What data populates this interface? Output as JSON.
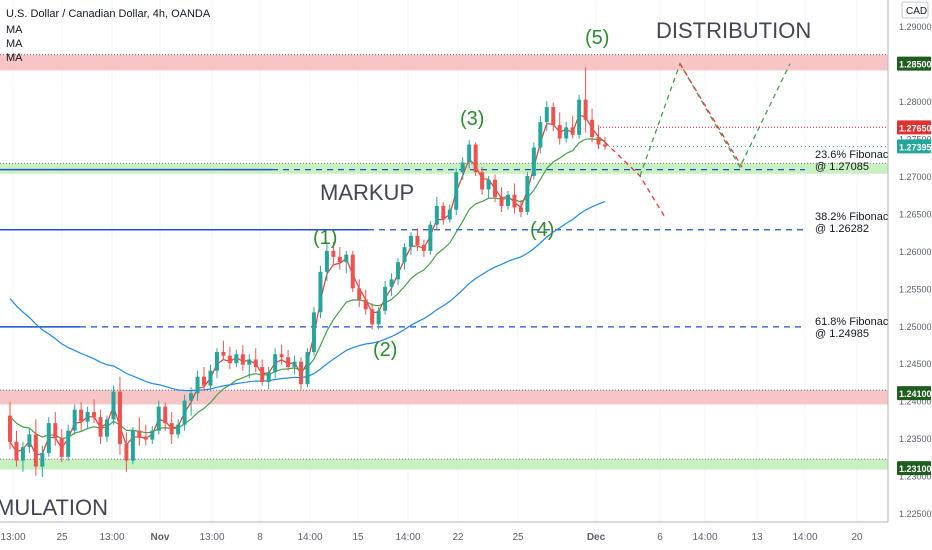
{
  "header": {
    "symbol_line": "U.S. Dollar / Canadian Dollar, 4h, OANDA",
    "ma_labels": [
      "MA",
      "MA",
      "MA"
    ]
  },
  "chart_data": {
    "type": "candlestick",
    "title": "U.S. Dollar / Canadian Dollar, 4h, OANDA",
    "currency": "CAD",
    "ylim": [
      1.2225,
      1.3
    ],
    "y_ticks": [
      "1.29000",
      "1.28000",
      "1.27500",
      "1.27000",
      "1.26500",
      "1.26000",
      "1.25500",
      "1.25000",
      "1.24500",
      "1.24000",
      "1.23500",
      "1.23000",
      "1.22500"
    ],
    "x_ticks": [
      "13:00",
      "25",
      "13:00",
      "Nov",
      "13:00",
      "8",
      "14:00",
      "15",
      "14:00",
      "22",
      "25",
      "Dec",
      "6",
      "14:00",
      "13",
      "14:00",
      "20"
    ],
    "price_labels": [
      {
        "text": "1.28500",
        "value": 1.285,
        "color": "#1e5e1e"
      },
      {
        "text": "1.27650",
        "value": 1.2765,
        "color": "#e03030"
      },
      {
        "text": "1.27395",
        "value": 1.27395,
        "color": "#26a69a"
      },
      {
        "text": "1.24100",
        "value": 1.241,
        "color": "#1e5e1e"
      },
      {
        "text": "1.23100",
        "value": 1.231,
        "color": "#1e5e1e"
      }
    ],
    "zones": [
      {
        "name": "resistance",
        "from": 1.2841,
        "to": 1.2862,
        "color": "#f7c5c5"
      },
      {
        "name": "support",
        "from": 1.2703,
        "to": 1.2717,
        "color": "#c8f0c0"
      },
      {
        "name": "resistance",
        "from": 1.2395,
        "to": 1.2414,
        "color": "#f7c5c5"
      },
      {
        "name": "support",
        "from": 1.2308,
        "to": 1.2322,
        "color": "#c8f0c0"
      }
    ],
    "fibonacci": [
      {
        "label": "23.6% Fibonacci",
        "value_text": "@ 1.27085",
        "value": 1.27085
      },
      {
        "label": "38.2% Fibonacci",
        "value_text": "@ 1.26282",
        "value": 1.26282
      },
      {
        "label": "61.8% Fibonacci",
        "value_text": "@ 1.24985",
        "value": 1.24985
      }
    ],
    "annotations": {
      "distribution": "DISTRIBUTION",
      "markup": "MARKUP",
      "accumulation": "MULATION",
      "waves": [
        "(1)",
        "(2)",
        "(3)",
        "(4)",
        "(5)"
      ]
    },
    "candles": [
      [
        1.238,
        1.2398,
        1.2335,
        1.2345
      ],
      [
        1.2345,
        1.236,
        1.2312,
        1.232
      ],
      [
        1.232,
        1.2345,
        1.2305,
        1.2338
      ],
      [
        1.2338,
        1.2362,
        1.233,
        1.2355
      ],
      [
        1.2355,
        1.2375,
        1.23,
        1.2312
      ],
      [
        1.2312,
        1.234,
        1.2298,
        1.233
      ],
      [
        1.233,
        1.2378,
        1.2325,
        1.237
      ],
      [
        1.237,
        1.2385,
        1.234,
        1.235
      ],
      [
        1.235,
        1.2362,
        1.2318,
        1.2325
      ],
      [
        1.2325,
        1.2368,
        1.232,
        1.236
      ],
      [
        1.236,
        1.2395,
        1.2355,
        1.2388
      ],
      [
        1.2388,
        1.2398,
        1.236,
        1.2372
      ],
      [
        1.2372,
        1.2392,
        1.2362,
        1.2385
      ],
      [
        1.2385,
        1.2402,
        1.237,
        1.2378
      ],
      [
        1.2378,
        1.2388,
        1.2342,
        1.2352
      ],
      [
        1.2352,
        1.238,
        1.2345,
        1.2375
      ],
      [
        1.2375,
        1.242,
        1.2368,
        1.2412
      ],
      [
        1.2412,
        1.2432,
        1.2328,
        1.2342
      ],
      [
        1.2342,
        1.2358,
        1.2305,
        1.232
      ],
      [
        1.232,
        1.2365,
        1.2315,
        1.236
      ],
      [
        1.236,
        1.2378,
        1.234,
        1.2352
      ],
      [
        1.2352,
        1.2368,
        1.234,
        1.2348
      ],
      [
        1.2348,
        1.2366,
        1.2342,
        1.236
      ],
      [
        1.236,
        1.24,
        1.2355,
        1.2392
      ],
      [
        1.2392,
        1.2398,
        1.236,
        1.237
      ],
      [
        1.237,
        1.2385,
        1.2342,
        1.2355
      ],
      [
        1.2355,
        1.2375,
        1.235,
        1.2368
      ],
      [
        1.2368,
        1.2408,
        1.236,
        1.24
      ],
      [
        1.24,
        1.2418,
        1.238,
        1.241
      ],
      [
        1.241,
        1.244,
        1.24,
        1.2432
      ],
      [
        1.2432,
        1.2445,
        1.2415,
        1.242
      ],
      [
        1.242,
        1.2448,
        1.2412,
        1.244
      ],
      [
        1.244,
        1.247,
        1.243,
        1.2465
      ],
      [
        1.2465,
        1.248,
        1.2455,
        1.246
      ],
      [
        1.246,
        1.2472,
        1.2442,
        1.245
      ],
      [
        1.245,
        1.2468,
        1.2445,
        1.2462
      ],
      [
        1.2462,
        1.2474,
        1.244,
        1.2448
      ],
      [
        1.2448,
        1.2462,
        1.243,
        1.2455
      ],
      [
        1.2455,
        1.247,
        1.2438,
        1.2445
      ],
      [
        1.2445,
        1.2455,
        1.242,
        1.2425
      ],
      [
        1.2425,
        1.2445,
        1.2415,
        1.2438
      ],
      [
        1.2438,
        1.247,
        1.243,
        1.2462
      ],
      [
        1.2462,
        1.2475,
        1.2448,
        1.2458
      ],
      [
        1.2458,
        1.2468,
        1.244,
        1.2445
      ],
      [
        1.2445,
        1.246,
        1.2435,
        1.2452
      ],
      [
        1.2452,
        1.2458,
        1.2415,
        1.2422
      ],
      [
        1.2422,
        1.247,
        1.2418,
        1.2465
      ],
      [
        1.2465,
        1.2525,
        1.246,
        1.2518
      ],
      [
        1.2518,
        1.258,
        1.251,
        1.2572
      ],
      [
        1.2572,
        1.261,
        1.256,
        1.26
      ],
      [
        1.26,
        1.2612,
        1.258,
        1.2592
      ],
      [
        1.2592,
        1.2605,
        1.2575,
        1.2585
      ],
      [
        1.2585,
        1.26,
        1.257,
        1.2595
      ],
      [
        1.2595,
        1.26,
        1.2545,
        1.255
      ],
      [
        1.255,
        1.2562,
        1.2525,
        1.2535
      ],
      [
        1.2535,
        1.2548,
        1.2515,
        1.2522
      ],
      [
        1.2522,
        1.253,
        1.2495,
        1.2502
      ],
      [
        1.2502,
        1.2525,
        1.2495,
        1.252
      ],
      [
        1.252,
        1.256,
        1.2515,
        1.2552
      ],
      [
        1.2552,
        1.257,
        1.254,
        1.2562
      ],
      [
        1.2562,
        1.259,
        1.2555,
        1.2585
      ],
      [
        1.2585,
        1.261,
        1.2575,
        1.2605
      ],
      [
        1.2605,
        1.2625,
        1.2595,
        1.262
      ],
      [
        1.262,
        1.263,
        1.26,
        1.2608
      ],
      [
        1.2608,
        1.2615,
        1.2592,
        1.26
      ],
      [
        1.26,
        1.264,
        1.2595,
        1.2635
      ],
      [
        1.2635,
        1.2672,
        1.2628,
        1.266
      ],
      [
        1.266,
        1.2665,
        1.2635,
        1.2642
      ],
      [
        1.2642,
        1.2662,
        1.2638,
        1.2655
      ],
      [
        1.2655,
        1.271,
        1.2648,
        1.2705
      ],
      [
        1.2705,
        1.2725,
        1.2695,
        1.2718
      ],
      [
        1.2718,
        1.2748,
        1.271,
        1.2742
      ],
      [
        1.2742,
        1.2745,
        1.27,
        1.2705
      ],
      [
        1.2705,
        1.2712,
        1.2675,
        1.2682
      ],
      [
        1.2682,
        1.27,
        1.267,
        1.2695
      ],
      [
        1.2695,
        1.2702,
        1.2665,
        1.2672
      ],
      [
        1.2672,
        1.2685,
        1.2652,
        1.266
      ],
      [
        1.266,
        1.268,
        1.2655,
        1.2675
      ],
      [
        1.2675,
        1.269,
        1.265,
        1.2658
      ],
      [
        1.2658,
        1.2668,
        1.2645,
        1.2652
      ],
      [
        1.2652,
        1.2705,
        1.2648,
        1.27
      ],
      [
        1.27,
        1.2745,
        1.2695,
        1.2738
      ],
      [
        1.2738,
        1.278,
        1.273,
        1.2772
      ],
      [
        1.2772,
        1.28,
        1.276,
        1.2792
      ],
      [
        1.2792,
        1.2798,
        1.276,
        1.2768
      ],
      [
        1.2768,
        1.2785,
        1.2742,
        1.275
      ],
      [
        1.275,
        1.2772,
        1.2745,
        1.2765
      ],
      [
        1.2765,
        1.278,
        1.275,
        1.2755
      ],
      [
        1.2755,
        1.2808,
        1.275,
        1.2802
      ],
      [
        1.2802,
        1.2845,
        1.2758,
        1.2775
      ],
      [
        1.2775,
        1.279,
        1.2745,
        1.2752
      ],
      [
        1.2752,
        1.2768,
        1.2736,
        1.2742
      ],
      [
        1.2742,
        1.2752,
        1.2735,
        1.27395
      ]
    ],
    "moving_averages": [
      {
        "color": "#e53935",
        "period": 20
      },
      {
        "color": "#43a047",
        "period": 50
      },
      {
        "color": "#1e88e5",
        "period": 100
      }
    ]
  }
}
